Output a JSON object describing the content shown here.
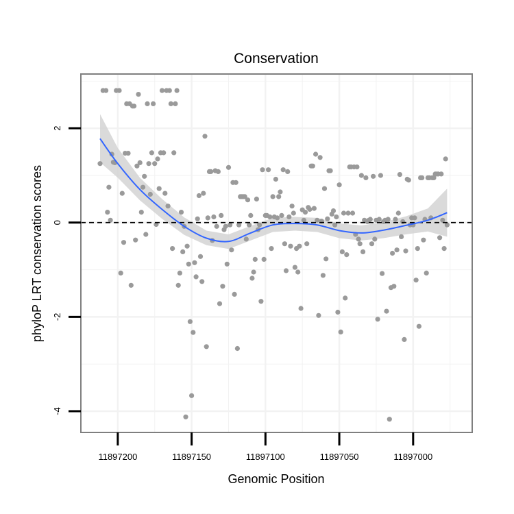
{
  "chart_data": {
    "type": "scatter",
    "title": "Conservation",
    "xlabel": "Genomic Position",
    "ylabel": "phyloP LRT conservation scores",
    "x_reversed": true,
    "xlim": [
      11897225,
      11896960
    ],
    "ylim": [
      -4.45,
      3.15
    ],
    "x_ticks": [
      11897200,
      11897150,
      11897100,
      11897050,
      11897000
    ],
    "x_tick_labels": [
      "11897200",
      "11897150",
      "11897100",
      "11897050",
      "11897000"
    ],
    "y_ticks": [
      2,
      0,
      -2,
      -4
    ],
    "y_tick_labels": [
      "2",
      "0",
      "-2",
      "-4"
    ],
    "reference_line": {
      "y": 0,
      "style": "dashed"
    },
    "grid": true,
    "colors": {
      "points": "#9a9a9a",
      "smooth_line": "#3366ff",
      "confidence_band": "#d3d3d3",
      "reference_line": "#000000",
      "panel_border": "#7f7f7f",
      "grid": "#f2f2f2"
    },
    "points": [
      {
        "x": 11897212,
        "y": 1.25
      },
      {
        "x": 11897210,
        "y": 2.8
      },
      {
        "x": 11897208,
        "y": 2.8
      },
      {
        "x": 11897207,
        "y": 0.22
      },
      {
        "x": 11897206,
        "y": 0.75
      },
      {
        "x": 11897205,
        "y": 0.05
      },
      {
        "x": 11897204,
        "y": 1.45
      },
      {
        "x": 11897203,
        "y": 1.28
      },
      {
        "x": 11897202,
        "y": 1.27
      },
      {
        "x": 11897201,
        "y": 2.8
      },
      {
        "x": 11897199,
        "y": 2.8
      },
      {
        "x": 11897198,
        "y": -1.07
      },
      {
        "x": 11897197,
        "y": 0.62
      },
      {
        "x": 11897196,
        "y": -0.42
      },
      {
        "x": 11897195,
        "y": 1.47
      },
      {
        "x": 11897194,
        "y": 2.52
      },
      {
        "x": 11897193,
        "y": 1.47
      },
      {
        "x": 11897192,
        "y": 2.52
      },
      {
        "x": 11897191,
        "y": -1.33
      },
      {
        "x": 11897190,
        "y": 2.47
      },
      {
        "x": 11897189,
        "y": 2.47
      },
      {
        "x": 11897188,
        "y": -0.37
      },
      {
        "x": 11897187,
        "y": 1.2
      },
      {
        "x": 11897186,
        "y": 2.72
      },
      {
        "x": 11897185,
        "y": 1.27
      },
      {
        "x": 11897184,
        "y": 0.22
      },
      {
        "x": 11897183,
        "y": 0.75
      },
      {
        "x": 11897182,
        "y": 0.98
      },
      {
        "x": 11897181,
        "y": -0.25
      },
      {
        "x": 11897180,
        "y": 2.52
      },
      {
        "x": 11897179,
        "y": 1.25
      },
      {
        "x": 11897178,
        "y": 0.6
      },
      {
        "x": 11897177,
        "y": 1.48
      },
      {
        "x": 11897176,
        "y": 2.52
      },
      {
        "x": 11897175,
        "y": 1.25
      },
      {
        "x": 11897174,
        "y": -0.04
      },
      {
        "x": 11897173,
        "y": 1.35
      },
      {
        "x": 11897172,
        "y": 0.72
      },
      {
        "x": 11897171,
        "y": 1.48
      },
      {
        "x": 11897170,
        "y": 2.8
      },
      {
        "x": 11897169,
        "y": 1.48
      },
      {
        "x": 11897168,
        "y": 0.62
      },
      {
        "x": 11897167,
        "y": 2.8
      },
      {
        "x": 11897166,
        "y": 0.35
      },
      {
        "x": 11897165,
        "y": 2.8
      },
      {
        "x": 11897164,
        "y": 2.52
      },
      {
        "x": 11897163,
        "y": -0.55
      },
      {
        "x": 11897162,
        "y": 1.48
      },
      {
        "x": 11897161,
        "y": 2.52
      },
      {
        "x": 11897160,
        "y": 2.8
      },
      {
        "x": 11897159,
        "y": -1.33
      },
      {
        "x": 11897158,
        "y": -1.07
      },
      {
        "x": 11897157,
        "y": 0.22
      },
      {
        "x": 11897156,
        "y": -0.62
      },
      {
        "x": 11897155,
        "y": -0.08
      },
      {
        "x": 11897154,
        "y": -4.12
      },
      {
        "x": 11897153,
        "y": -0.5
      },
      {
        "x": 11897152,
        "y": -0.88
      },
      {
        "x": 11897151,
        "y": -2.1
      },
      {
        "x": 11897150,
        "y": -3.67
      },
      {
        "x": 11897149,
        "y": -2.33
      },
      {
        "x": 11897148,
        "y": -0.85
      },
      {
        "x": 11897147,
        "y": -1.15
      },
      {
        "x": 11897146,
        "y": 0.08
      },
      {
        "x": 11897145,
        "y": 0.57
      },
      {
        "x": 11897144,
        "y": -0.72
      },
      {
        "x": 11897143,
        "y": -1.25
      },
      {
        "x": 11897142,
        "y": 0.62
      },
      {
        "x": 11897141,
        "y": 1.83
      },
      {
        "x": 11897140,
        "y": -2.63
      },
      {
        "x": 11897139,
        "y": 0.1
      },
      {
        "x": 11897138,
        "y": 1.08
      },
      {
        "x": 11897137,
        "y": 1.08
      },
      {
        "x": 11897136,
        "y": -0.38
      },
      {
        "x": 11897135,
        "y": 0.12
      },
      {
        "x": 11897134,
        "y": 1.1
      },
      {
        "x": 11897133,
        "y": -0.08
      },
      {
        "x": 11897132,
        "y": 1.08
      },
      {
        "x": 11897131,
        "y": -1.72
      },
      {
        "x": 11897130,
        "y": 0.15
      },
      {
        "x": 11897129,
        "y": -1.35
      },
      {
        "x": 11897128,
        "y": -0.15
      },
      {
        "x": 11897127,
        "y": -0.08
      },
      {
        "x": 11897126,
        "y": -0.88
      },
      {
        "x": 11897125,
        "y": 1.17
      },
      {
        "x": 11897124,
        "y": -0.05
      },
      {
        "x": 11897123,
        "y": -0.58
      },
      {
        "x": 11897122,
        "y": 0.85
      },
      {
        "x": 11897121,
        "y": -1.52
      },
      {
        "x": 11897120,
        "y": 0.85
      },
      {
        "x": 11897119,
        "y": -2.67
      },
      {
        "x": 11897118,
        "y": -0.05
      },
      {
        "x": 11897117,
        "y": 0.55
      },
      {
        "x": 11897116,
        "y": 0.55
      },
      {
        "x": 11897115,
        "y": 0.55
      },
      {
        "x": 11897114,
        "y": 0.55
      },
      {
        "x": 11897113,
        "y": -0.35
      },
      {
        "x": 11897112,
        "y": 0.48
      },
      {
        "x": 11897111,
        "y": -0.05
      },
      {
        "x": 11897110,
        "y": 0.15
      },
      {
        "x": 11897109,
        "y": -1.18
      },
      {
        "x": 11897108,
        "y": -1.05
      },
      {
        "x": 11897107,
        "y": -0.78
      },
      {
        "x": 11897106,
        "y": 0.5
      },
      {
        "x": 11897105,
        "y": -0.15
      },
      {
        "x": 11897104,
        "y": -0.05
      },
      {
        "x": 11897103,
        "y": -1.67
      },
      {
        "x": 11897102,
        "y": 1.12
      },
      {
        "x": 11897101,
        "y": -0.78
      },
      {
        "x": 11897100,
        "y": 0.15
      },
      {
        "x": 11897099,
        "y": 0.15
      },
      {
        "x": 11897098,
        "y": 1.12
      },
      {
        "x": 11897097,
        "y": 0.12
      },
      {
        "x": 11897096,
        "y": -0.55
      },
      {
        "x": 11897095,
        "y": 0.55
      },
      {
        "x": 11897094,
        "y": 0.12
      },
      {
        "x": 11897093,
        "y": 0.92
      },
      {
        "x": 11897092,
        "y": 0.1
      },
      {
        "x": 11897091,
        "y": 0.55
      },
      {
        "x": 11897090,
        "y": 0.65
      },
      {
        "x": 11897089,
        "y": 0.15
      },
      {
        "x": 11897088,
        "y": 1.12
      },
      {
        "x": 11897087,
        "y": -0.45
      },
      {
        "x": 11897086,
        "y": -1.02
      },
      {
        "x": 11897085,
        "y": 1.08
      },
      {
        "x": 11897084,
        "y": 0.12
      },
      {
        "x": 11897083,
        "y": -0.5
      },
      {
        "x": 11897082,
        "y": 0.35
      },
      {
        "x": 11897081,
        "y": 0.2
      },
      {
        "x": 11897080,
        "y": -0.95
      },
      {
        "x": 11897079,
        "y": -0.55
      },
      {
        "x": 11897078,
        "y": -1.05
      },
      {
        "x": 11897077,
        "y": -0.5
      },
      {
        "x": 11897076,
        "y": -1.82
      },
      {
        "x": 11897075,
        "y": 0.27
      },
      {
        "x": 11897074,
        "y": 0.05
      },
      {
        "x": 11897073,
        "y": 0.22
      },
      {
        "x": 11897072,
        "y": -0.45
      },
      {
        "x": 11897071,
        "y": 0.32
      },
      {
        "x": 11897070,
        "y": 0.28
      },
      {
        "x": 11897069,
        "y": 1.2
      },
      {
        "x": 11897068,
        "y": 1.2
      },
      {
        "x": 11897067,
        "y": 0.3
      },
      {
        "x": 11897066,
        "y": 1.45
      },
      {
        "x": 11897065,
        "y": 0.05
      },
      {
        "x": 11897064,
        "y": -1.97
      },
      {
        "x": 11897063,
        "y": 1.38
      },
      {
        "x": 11897062,
        "y": 0.03
      },
      {
        "x": 11897061,
        "y": -1.12
      },
      {
        "x": 11897060,
        "y": 0.72
      },
      {
        "x": 11897059,
        "y": -0.77
      },
      {
        "x": 11897058,
        "y": 0.08
      },
      {
        "x": 11897057,
        "y": 1.1
      },
      {
        "x": 11897056,
        "y": 1.1
      },
      {
        "x": 11897055,
        "y": 0.18
      },
      {
        "x": 11897054,
        "y": 0.25
      },
      {
        "x": 11897053,
        "y": -0.05
      },
      {
        "x": 11897052,
        "y": 0.12
      },
      {
        "x": 11897051,
        "y": -1.9
      },
      {
        "x": 11897050,
        "y": 0.8
      },
      {
        "x": 11897049,
        "y": -2.32
      },
      {
        "x": 11897048,
        "y": -0.62
      },
      {
        "x": 11897047,
        "y": 0.2
      },
      {
        "x": 11897046,
        "y": -1.6
      },
      {
        "x": 11897045,
        "y": -0.68
      },
      {
        "x": 11897044,
        "y": 0.2
      },
      {
        "x": 11897043,
        "y": 1.18
      },
      {
        "x": 11897042,
        "y": 1.18
      },
      {
        "x": 11897041,
        "y": 0.2
      },
      {
        "x": 11897040,
        "y": 1.18
      },
      {
        "x": 11897039,
        "y": -0.25
      },
      {
        "x": 11897038,
        "y": 1.18
      },
      {
        "x": 11897037,
        "y": -0.35
      },
      {
        "x": 11897036,
        "y": -0.45
      },
      {
        "x": 11897035,
        "y": 1.0
      },
      {
        "x": 11897034,
        "y": -0.62
      },
      {
        "x": 11897033,
        "y": 0.05
      },
      {
        "x": 11897032,
        "y": 0.95
      },
      {
        "x": 11897031,
        "y": 0.02
      },
      {
        "x": 11897030,
        "y": 0.05
      },
      {
        "x": 11897029,
        "y": 0.07
      },
      {
        "x": 11897028,
        "y": -0.45
      },
      {
        "x": 11897027,
        "y": 0.98
      },
      {
        "x": 11897026,
        "y": -0.35
      },
      {
        "x": 11897025,
        "y": 0.05
      },
      {
        "x": 11897024,
        "y": -2.05
      },
      {
        "x": 11897023,
        "y": 0.07
      },
      {
        "x": 11897022,
        "y": 1.0
      },
      {
        "x": 11897021,
        "y": -1.08
      },
      {
        "x": 11897020,
        "y": 0.02
      },
      {
        "x": 11897019,
        "y": 0.05
      },
      {
        "x": 11897018,
        "y": -1.88
      },
      {
        "x": 11897017,
        "y": 0.07
      },
      {
        "x": 11897016,
        "y": -4.17
      },
      {
        "x": 11897015,
        "y": -1.38
      },
      {
        "x": 11897014,
        "y": -0.65
      },
      {
        "x": 11897013,
        "y": -1.35
      },
      {
        "x": 11897012,
        "y": 0.07
      },
      {
        "x": 11897011,
        "y": -0.58
      },
      {
        "x": 11897010,
        "y": 0.2
      },
      {
        "x": 11897009,
        "y": 1.02
      },
      {
        "x": 11897008,
        "y": -0.3
      },
      {
        "x": 11897007,
        "y": 0.02
      },
      {
        "x": 11897006,
        "y": -2.48
      },
      {
        "x": 11897005,
        "y": -0.6
      },
      {
        "x": 11897004,
        "y": 0.92
      },
      {
        "x": 11897003,
        "y": 0.9
      },
      {
        "x": 11897002,
        "y": -0.05
      },
      {
        "x": 11897001,
        "y": 0.1
      },
      {
        "x": 11897000,
        "y": -0.05
      },
      {
        "x": 11896999,
        "y": 0.1
      },
      {
        "x": 11896998,
        "y": -1.22
      },
      {
        "x": 11896997,
        "y": -0.55
      },
      {
        "x": 11896996,
        "y": -2.2
      },
      {
        "x": 11896995,
        "y": 0.95
      },
      {
        "x": 11896994,
        "y": 0.95
      },
      {
        "x": 11896993,
        "y": -0.37
      },
      {
        "x": 11896992,
        "y": 0.07
      },
      {
        "x": 11896991,
        "y": -1.07
      },
      {
        "x": 11896990,
        "y": 0.95
      },
      {
        "x": 11896989,
        "y": 0.95
      },
      {
        "x": 11896988,
        "y": 0.1
      },
      {
        "x": 11896987,
        "y": 0.95
      },
      {
        "x": 11896986,
        "y": 0.95
      },
      {
        "x": 11896985,
        "y": 1.03
      },
      {
        "x": 11896984,
        "y": 1.03
      },
      {
        "x": 11896983,
        "y": 1.03
      },
      {
        "x": 11896982,
        "y": -0.32
      },
      {
        "x": 11896981,
        "y": 1.03
      },
      {
        "x": 11896980,
        "y": 0.05
      },
      {
        "x": 11896979,
        "y": -0.55
      },
      {
        "x": 11896978,
        "y": 1.35
      },
      {
        "x": 11896977,
        "y": -0.05
      }
    ],
    "smooth": {
      "x": [
        11897212,
        11897200,
        11897185,
        11897170,
        11897155,
        11897140,
        11897125,
        11897110,
        11897095,
        11897080,
        11897065,
        11897050,
        11897035,
        11897020,
        11897005,
        11896990,
        11896977
      ],
      "y": [
        1.78,
        1.25,
        0.7,
        0.28,
        -0.08,
        -0.33,
        -0.4,
        -0.22,
        -0.05,
        -0.02,
        -0.05,
        -0.17,
        -0.22,
        -0.16,
        -0.06,
        0.05,
        0.21
      ],
      "lower": [
        1.28,
        0.95,
        0.47,
        0.08,
        -0.26,
        -0.48,
        -0.56,
        -0.38,
        -0.2,
        -0.17,
        -0.2,
        -0.33,
        -0.38,
        -0.33,
        -0.25,
        -0.19,
        -0.3
      ],
      "upper": [
        2.3,
        1.58,
        0.95,
        0.5,
        0.11,
        -0.17,
        -0.25,
        -0.07,
        0.1,
        0.12,
        0.1,
        -0.02,
        -0.06,
        0.01,
        0.13,
        0.3,
        0.72
      ]
    }
  }
}
